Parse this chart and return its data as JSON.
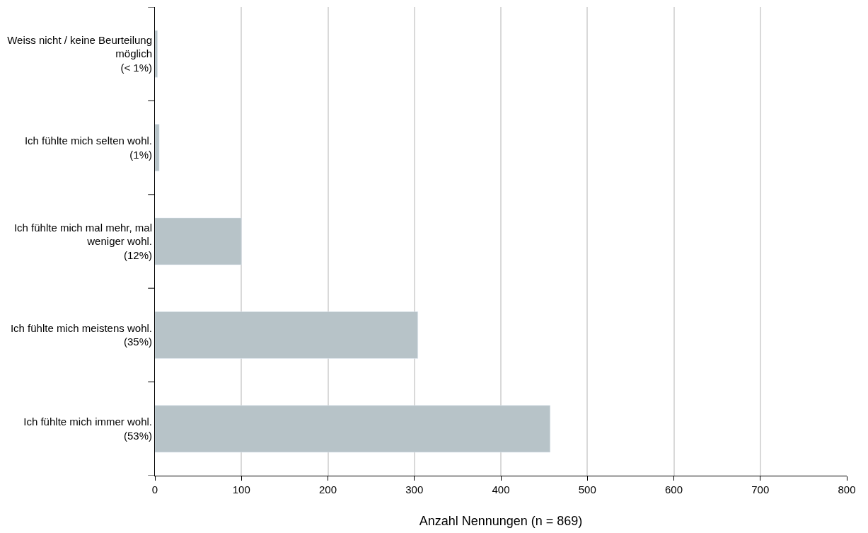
{
  "chart_data": {
    "type": "bar",
    "orientation": "horizontal",
    "categories": [
      "Weiss nicht / keine Beurteilung\nmöglich\n(< 1%)",
      "Ich fühlte mich selten wohl.\n(1%)",
      "Ich fühlte mich mal mehr, mal\nweniger wohl.\n(12%)",
      "Ich fühlte mich meistens wohl.\n(35%)",
      "Ich fühlte mich immer wohl.\n(53%)"
    ],
    "values": [
      3,
      5,
      100,
      304,
      457
    ],
    "color": "#b7c3c8",
    "xlabel": "Anzahl Nennungen (n = 869)",
    "xlim": [
      0,
      800
    ],
    "xticks": [
      0,
      100,
      200,
      300,
      400,
      500,
      600,
      700,
      800
    ],
    "grid": "x",
    "legend": false
  }
}
